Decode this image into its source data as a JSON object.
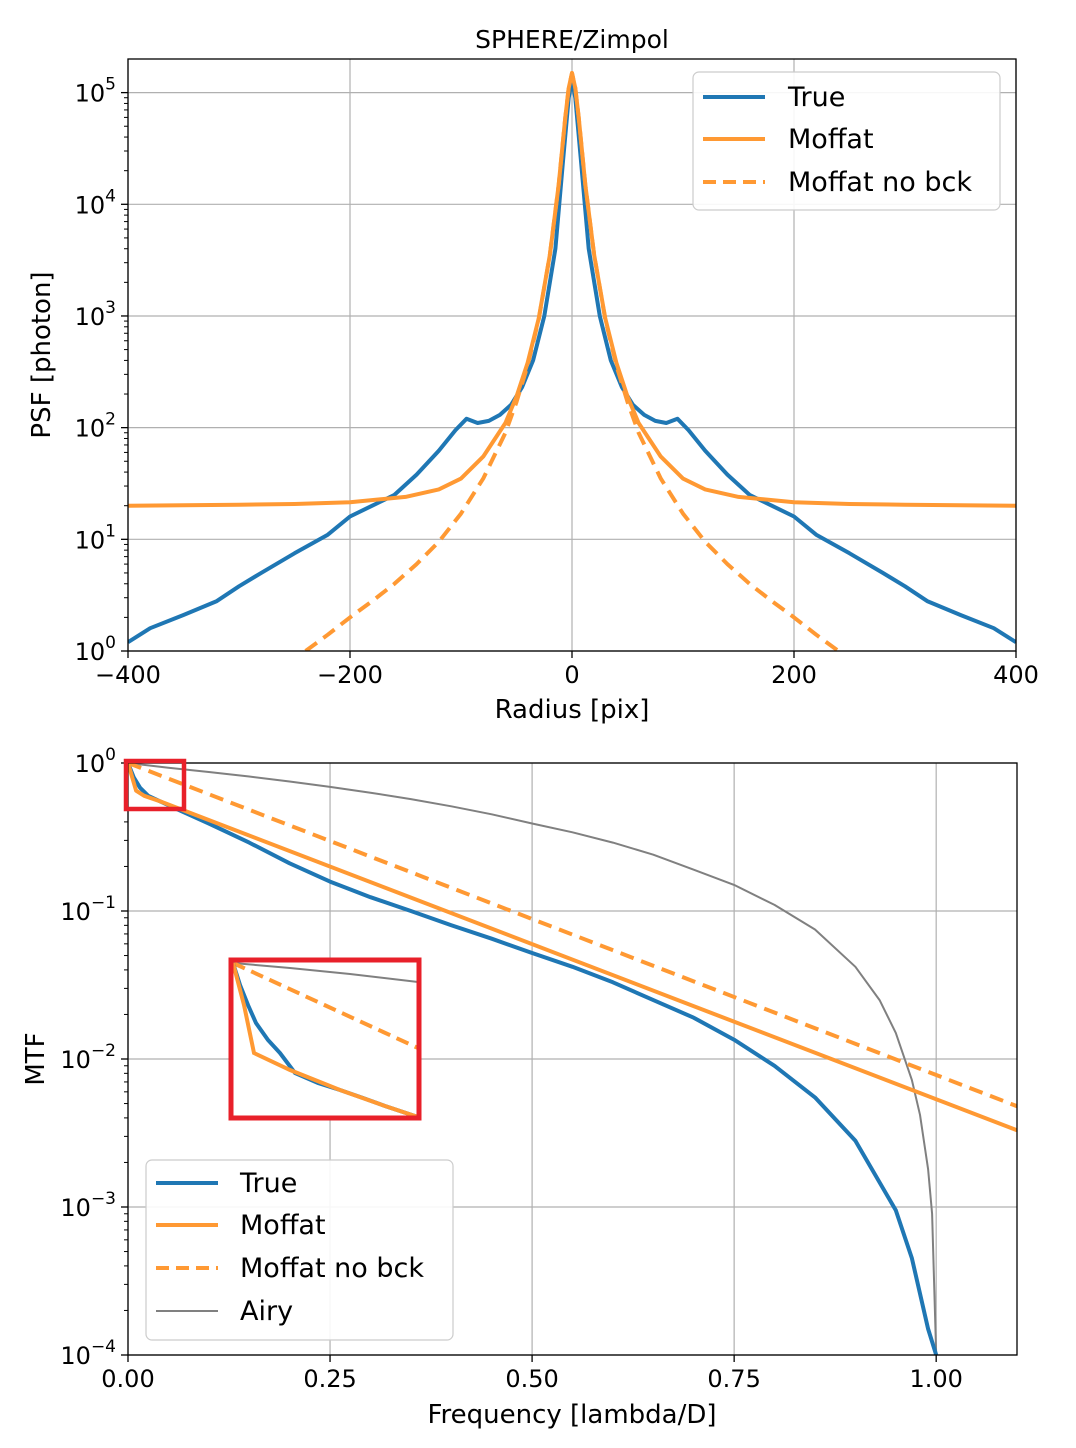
{
  "chart_data": [
    {
      "type": "line",
      "title": "SPHERE/Zimpol",
      "xlabel": "Radius [pix]",
      "ylabel": "PSF [photon]",
      "xscale": "linear",
      "yscale": "log",
      "xlim": [
        -400,
        400
      ],
      "ylim": [
        1,
        200000
      ],
      "xticks": [
        {
          "value": -400,
          "label": "−400"
        },
        {
          "value": -200,
          "label": "−200"
        },
        {
          "value": 0,
          "label": "0"
        },
        {
          "value": 200,
          "label": "200"
        },
        {
          "value": 400,
          "label": "400"
        }
      ],
      "yticks": [
        {
          "value": 1,
          "base": "10",
          "exp": "0"
        },
        {
          "value": 10,
          "base": "10",
          "exp": "1"
        },
        {
          "value": 100,
          "base": "10",
          "exp": "2"
        },
        {
          "value": 1000,
          "base": "10",
          "exp": "3"
        },
        {
          "value": 10000,
          "base": "10",
          "exp": "4"
        },
        {
          "value": 100000,
          "base": "10",
          "exp": "5"
        }
      ],
      "grid": true,
      "legend_position": "top-right",
      "series": [
        {
          "name": "True",
          "color": "#1f77b4",
          "style": "solid",
          "x": [
            -400,
            -380,
            -350,
            -320,
            -300,
            -280,
            -250,
            -220,
            -200,
            -180,
            -160,
            -140,
            -120,
            -105,
            -95,
            -85,
            -75,
            -65,
            -55,
            -45,
            -35,
            -25,
            -15,
            -8,
            -3,
            0,
            3,
            8,
            15,
            25,
            35,
            45,
            55,
            65,
            75,
            85,
            95,
            105,
            120,
            140,
            160,
            180,
            200,
            220,
            250,
            280,
            300,
            320,
            350,
            380,
            400
          ],
          "y": [
            1.2,
            1.6,
            2.1,
            2.8,
            3.8,
            5.0,
            7.5,
            11,
            16,
            20,
            25,
            38,
            62,
            95,
            120,
            110,
            115,
            130,
            160,
            230,
            400,
            1000,
            4000,
            25000,
            90000,
            130000,
            90000,
            25000,
            4000,
            1000,
            400,
            230,
            160,
            130,
            115,
            110,
            120,
            95,
            62,
            38,
            25,
            20,
            16,
            11,
            7.5,
            5.0,
            3.8,
            2.8,
            2.1,
            1.6,
            1.2
          ]
        },
        {
          "name": "Moffat",
          "color": "#ff9933",
          "style": "solid",
          "x": [
            -400,
            -350,
            -300,
            -250,
            -200,
            -150,
            -120,
            -100,
            -80,
            -60,
            -50,
            -40,
            -30,
            -20,
            -12,
            -6,
            -3,
            0,
            3,
            6,
            12,
            20,
            30,
            40,
            50,
            60,
            80,
            100,
            120,
            150,
            200,
            250,
            300,
            350,
            400
          ],
          "y": [
            20,
            20.2,
            20.4,
            20.7,
            21.5,
            24,
            28,
            35,
            55,
            110,
            190,
            380,
            950,
            3500,
            15000,
            60000,
            110000,
            150000,
            110000,
            60000,
            15000,
            3500,
            950,
            380,
            190,
            110,
            55,
            35,
            28,
            24,
            21.5,
            20.7,
            20.4,
            20.2,
            20
          ]
        },
        {
          "name": "Moffat no bck",
          "color": "#ff9933",
          "style": "dashed",
          "x": [
            -240,
            -220,
            -200,
            -180,
            -160,
            -140,
            -120,
            -100,
            -80,
            -60,
            -50,
            -40,
            -30,
            -20,
            -12,
            -6,
            -3,
            0,
            3,
            6,
            12,
            20,
            30,
            40,
            50,
            60,
            80,
            100,
            120,
            140,
            160,
            180,
            200,
            220,
            240
          ],
          "y": [
            1,
            1.4,
            2.0,
            2.8,
            4.0,
            6.0,
            9.5,
            17,
            35,
            90,
            170,
            360,
            930,
            3500,
            15000,
            60000,
            110000,
            150000,
            110000,
            60000,
            15000,
            3500,
            930,
            360,
            170,
            90,
            35,
            17,
            9.5,
            6.0,
            4.0,
            2.8,
            2.0,
            1.4,
            1
          ]
        }
      ],
      "legend": [
        "True",
        "Moffat",
        "Moffat no bck"
      ]
    },
    {
      "type": "line",
      "title": "",
      "xlabel": "Frequency [lambda/D]",
      "ylabel": "MTF",
      "xscale": "linear",
      "yscale": "log",
      "xlim": [
        0,
        1.1
      ],
      "ylim": [
        0.0001,
        1
      ],
      "xticks": [
        {
          "value": 0,
          "label": "0.00"
        },
        {
          "value": 0.25,
          "label": "0.25"
        },
        {
          "value": 0.5,
          "label": "0.50"
        },
        {
          "value": 0.75,
          "label": "0.75"
        },
        {
          "value": 1.0,
          "label": "1.00"
        }
      ],
      "yticks": [
        {
          "value": 1,
          "base": "10",
          "exp": "0"
        },
        {
          "value": 0.1,
          "base": "10",
          "exp": "−1"
        },
        {
          "value": 0.01,
          "base": "10",
          "exp": "−2"
        },
        {
          "value": 0.001,
          "base": "10",
          "exp": "−3"
        },
        {
          "value": 0.0001,
          "base": "10",
          "exp": "−4"
        }
      ],
      "grid": true,
      "legend_position": "bottom-left",
      "series": [
        {
          "name": "True",
          "color": "#1f77b4",
          "style": "solid",
          "x": [
            0,
            0.007,
            0.015,
            0.025,
            0.04,
            0.06,
            0.1,
            0.15,
            0.2,
            0.25,
            0.3,
            0.35,
            0.4,
            0.45,
            0.5,
            0.55,
            0.6,
            0.65,
            0.7,
            0.75,
            0.8,
            0.85,
            0.9,
            0.95,
            0.97,
            0.99,
            1.0
          ],
          "y": [
            1,
            0.8,
            0.68,
            0.6,
            0.55,
            0.49,
            0.39,
            0.29,
            0.21,
            0.158,
            0.124,
            0.1,
            0.08,
            0.065,
            0.052,
            0.042,
            0.033,
            0.025,
            0.019,
            0.0135,
            0.009,
            0.0055,
            0.0028,
            0.00095,
            0.00045,
            0.00015,
            0.0001
          ]
        },
        {
          "name": "Moffat",
          "color": "#ff9933",
          "style": "solid",
          "x": [
            0,
            0.01,
            0.02,
            0.04,
            0.06,
            1.1
          ],
          "y": [
            1,
            0.65,
            0.6,
            0.55,
            0.5,
            0.0033
          ]
        },
        {
          "name": "Moffat no bck",
          "color": "#ff9933",
          "style": "dashed",
          "x": [
            0,
            1.1
          ],
          "y": [
            1,
            0.0048
          ]
        },
        {
          "name": "Airy",
          "color": "#808080",
          "style": "solid",
          "x": [
            0,
            0.05,
            0.1,
            0.15,
            0.2,
            0.25,
            0.3,
            0.35,
            0.4,
            0.45,
            0.5,
            0.55,
            0.6,
            0.65,
            0.7,
            0.75,
            0.8,
            0.85,
            0.9,
            0.93,
            0.95,
            0.97,
            0.98,
            0.99,
            0.995,
            1.0
          ],
          "y": [
            1,
            0.93,
            0.87,
            0.81,
            0.75,
            0.69,
            0.63,
            0.57,
            0.51,
            0.45,
            0.39,
            0.34,
            0.29,
            0.24,
            0.19,
            0.15,
            0.11,
            0.075,
            0.042,
            0.025,
            0.015,
            0.0072,
            0.0042,
            0.0018,
            0.0009,
            0.0001
          ]
        }
      ],
      "legend": [
        "True",
        "Moffat",
        "Moffat no bck",
        "Airy"
      ],
      "annotations": [
        {
          "kind": "highlight-box",
          "color": "#e8202a",
          "region": {
            "x": [
              0,
              0.07
            ],
            "y": [
              0.48,
              1
            ]
          }
        },
        {
          "kind": "zoom-inset",
          "color": "#e8202a",
          "description": "magnified view of the highlighted region"
        }
      ]
    }
  ]
}
